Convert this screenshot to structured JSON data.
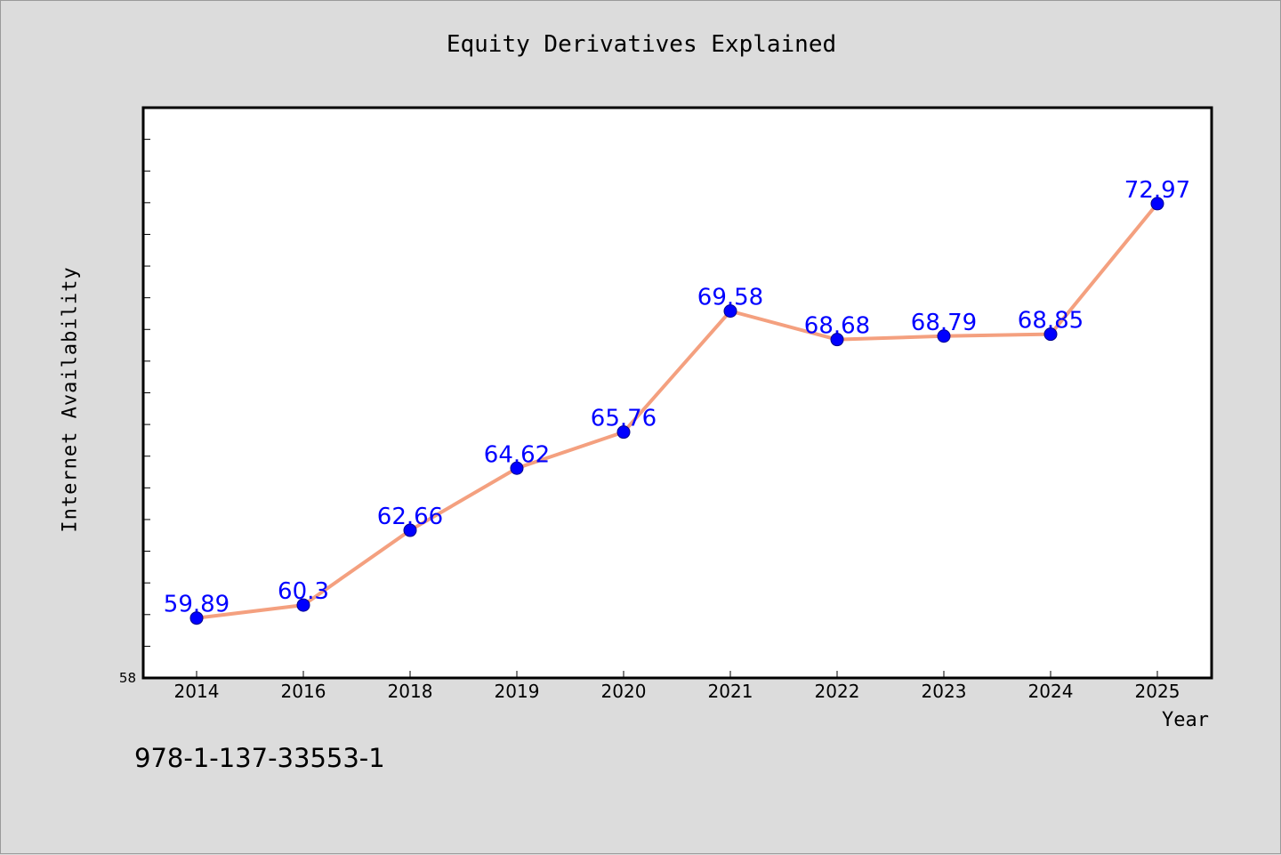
{
  "chart_data": {
    "type": "line",
    "title": "Equity Derivatives Explained",
    "xlabel": "Year",
    "ylabel": "Internet Availability",
    "categories": [
      "2014",
      "2016",
      "2018",
      "2019",
      "2020",
      "2021",
      "2022",
      "2023",
      "2024",
      "2025"
    ],
    "series": [
      {
        "values": [
          59.89,
          60.3,
          62.66,
          64.62,
          65.76,
          69.58,
          68.68,
          68.79,
          68.85,
          72.97
        ]
      }
    ],
    "data_labels": [
      "59.89",
      "60.3",
      "62.66",
      "64.62",
      "65.76",
      "69.58",
      "68.68",
      "68.79",
      "68.85",
      "72.97"
    ],
    "ylim": [
      58,
      76
    ],
    "y_tick_labels": [
      "58"
    ],
    "grid": false,
    "colors": {
      "line": "#f4a07f",
      "marker": "#0000ff",
      "label": "#0000ff"
    }
  },
  "footer": {
    "isbn": "978-1-137-33553-1"
  }
}
